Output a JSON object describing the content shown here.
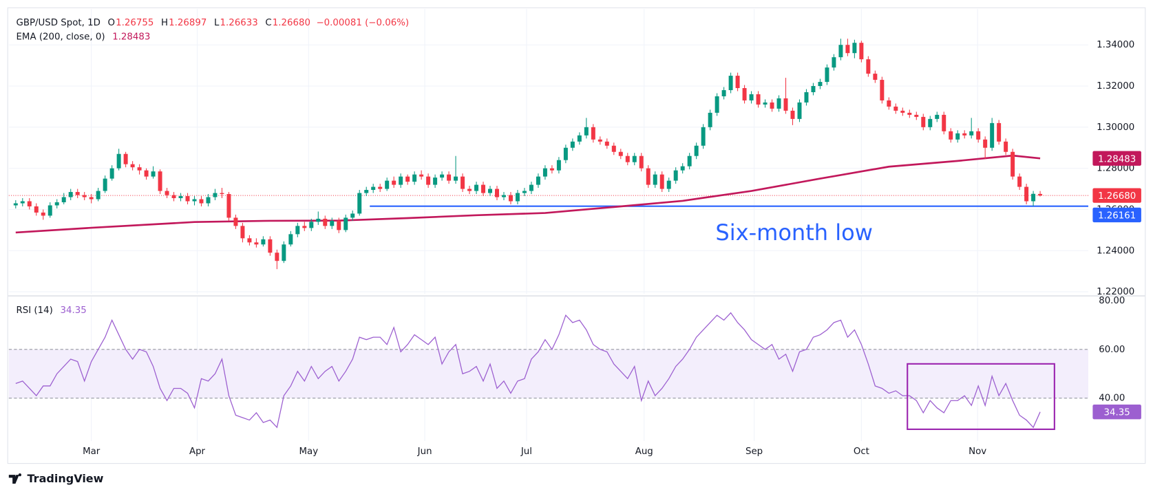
{
  "chart_data": {
    "type": "candlestick",
    "title": "GBP/USD Spot, 1D",
    "ohlc_labels": [
      {
        "key": "O",
        "label": "1.26755"
      },
      {
        "key": "H",
        "label": "1.26897"
      },
      {
        "key": "L",
        "label": "1.26633"
      },
      {
        "key": "C",
        "label": "1.26680"
      }
    ],
    "change_label": "−0.00081 (−0.06%)",
    "xlim": [
      -1,
      156
    ],
    "xticks": [
      {
        "value": 11,
        "label": "Mar"
      },
      {
        "value": 26.4,
        "label": "Apr"
      },
      {
        "value": 42.6,
        "label": "May"
      },
      {
        "value": 59.5,
        "label": "Jun"
      },
      {
        "value": 74.3,
        "label": "Jul"
      },
      {
        "value": 91.4,
        "label": "Aug"
      },
      {
        "value": 107.4,
        "label": "Sep"
      },
      {
        "value": 123,
        "label": "Oct"
      },
      {
        "value": 139.9,
        "label": "Nov"
      }
    ],
    "ylim": [
      1.2189,
      1.3575
    ],
    "yticks": [
      {
        "value": 1.34,
        "label": "1.34000"
      },
      {
        "value": 1.32,
        "label": "1.32000"
      },
      {
        "value": 1.3,
        "label": "1.30000"
      },
      {
        "value": 1.28,
        "label": "1.28000"
      },
      {
        "value": 1.26,
        "label": "1.26000"
      },
      {
        "value": 1.24,
        "label": "1.24000"
      },
      {
        "value": 1.22,
        "label": "1.22000"
      }
    ],
    "grid": true,
    "series": [
      {
        "up_color": "#089981",
        "down_color": "#f23645",
        "open": [
          1.262,
          1.263,
          1.264,
          1.2615,
          1.2585,
          1.257,
          1.262,
          1.2635,
          1.266,
          1.2685,
          1.267,
          1.266,
          1.265,
          1.269,
          1.275,
          1.28,
          1.287,
          1.282,
          1.2805,
          1.279,
          1.276,
          1.2785,
          1.269,
          1.267,
          1.2655,
          1.2665,
          1.264,
          1.265,
          1.263,
          1.266,
          1.268,
          1.2675,
          1.256,
          1.252,
          1.246,
          1.244,
          1.243,
          1.2455,
          1.239,
          1.235,
          1.243,
          1.248,
          1.252,
          1.251,
          1.254,
          1.2555,
          1.252,
          1.2545,
          1.25,
          1.256,
          1.258,
          1.268,
          1.2695,
          1.271,
          1.27,
          1.274,
          1.272,
          1.276,
          1.2735,
          1.277,
          1.276,
          1.272,
          1.2755,
          1.277,
          1.274,
          1.276,
          1.27,
          1.269,
          1.272,
          1.268,
          1.27,
          1.266,
          1.267,
          1.264,
          1.268,
          1.269,
          1.272,
          1.276,
          1.28,
          1.279,
          1.284,
          1.29,
          1.293,
          1.296,
          1.3,
          1.294,
          1.293,
          1.291,
          1.288,
          1.286,
          1.283,
          1.286,
          1.28,
          1.272,
          1.277,
          1.27,
          1.274,
          1.279,
          1.281,
          1.286,
          1.291,
          1.3,
          1.307,
          1.315,
          1.318,
          1.325,
          1.319,
          1.313,
          1.316,
          1.311,
          1.312,
          1.309,
          1.314,
          1.308,
          1.304,
          1.312,
          1.317,
          1.32,
          1.322,
          1.329,
          1.334,
          1.34,
          1.336,
          1.341,
          1.333,
          1.326,
          1.323,
          1.313,
          1.31,
          1.308,
          1.307,
          1.306,
          1.305,
          1.3,
          1.304,
          1.306,
          1.298,
          1.294,
          1.297,
          1.296,
          1.298,
          1.294,
          1.29,
          1.302,
          1.293,
          1.288,
          1.276,
          1.271,
          1.264,
          1.26755
        ],
        "high": [
          1.2645,
          1.2655,
          1.2655,
          1.263,
          1.26,
          1.2635,
          1.265,
          1.268,
          1.27,
          1.27,
          1.2685,
          1.2675,
          1.2705,
          1.2765,
          1.2815,
          1.2895,
          1.288,
          1.2835,
          1.282,
          1.28,
          1.281,
          1.2795,
          1.2705,
          1.2685,
          1.268,
          1.268,
          1.2665,
          1.2665,
          1.2675,
          1.27,
          1.2705,
          1.2685,
          1.2575,
          1.2535,
          1.2475,
          1.246,
          1.247,
          1.247,
          1.2405,
          1.2445,
          1.2495,
          1.2535,
          1.254,
          1.2555,
          1.259,
          1.257,
          1.256,
          1.256,
          1.2575,
          1.2595,
          1.2695,
          1.271,
          1.2725,
          1.2725,
          1.2755,
          1.276,
          1.2775,
          1.277,
          1.2785,
          1.279,
          1.2775,
          1.277,
          1.2785,
          1.2785,
          1.286,
          1.2775,
          1.2715,
          1.2735,
          1.2735,
          1.2715,
          1.2715,
          1.2685,
          1.2685,
          1.2695,
          1.2705,
          1.2735,
          1.2775,
          1.2815,
          1.2815,
          1.2855,
          1.2915,
          1.2945,
          1.2975,
          1.3045,
          1.3015,
          1.2955,
          1.2945,
          1.2925,
          1.2895,
          1.2875,
          1.2875,
          1.2875,
          1.2815,
          1.2785,
          1.2785,
          1.2755,
          1.2805,
          1.2825,
          1.2875,
          1.2925,
          1.3015,
          1.3085,
          1.3165,
          1.3195,
          1.3265,
          1.3265,
          1.3205,
          1.3175,
          1.3175,
          1.3135,
          1.3135,
          1.3155,
          1.324,
          1.3095,
          1.3135,
          1.3185,
          1.3215,
          1.3235,
          1.3305,
          1.3355,
          1.343,
          1.343,
          1.3425,
          1.342,
          1.3345,
          1.3275,
          1.3245,
          1.3145,
          1.3115,
          1.3095,
          1.3085,
          1.3075,
          1.3065,
          1.3055,
          1.3075,
          1.3075,
          1.2995,
          1.2985,
          1.2985,
          1.3045,
          1.2995,
          1.2955,
          1.3045,
          1.3035,
          1.2945,
          1.2895,
          1.2775,
          1.2725,
          1.269,
          1.26897
        ],
        "low": [
          1.2605,
          1.2615,
          1.26,
          1.257,
          1.255,
          1.256,
          1.2605,
          1.2625,
          1.2645,
          1.2655,
          1.2645,
          1.263,
          1.264,
          1.268,
          1.274,
          1.279,
          1.2805,
          1.279,
          1.277,
          1.2745,
          1.275,
          1.2675,
          1.2655,
          1.264,
          1.264,
          1.2625,
          1.262,
          1.2615,
          1.2615,
          1.2645,
          1.2655,
          1.2545,
          1.2505,
          1.244,
          1.2425,
          1.2415,
          1.242,
          1.2375,
          1.231,
          1.234,
          1.242,
          1.2465,
          1.2495,
          1.2495,
          1.2525,
          1.2505,
          1.2505,
          1.2485,
          1.249,
          1.2545,
          1.257,
          1.2665,
          1.268,
          1.2685,
          1.269,
          1.2705,
          1.2705,
          1.272,
          1.272,
          1.2745,
          1.2705,
          1.2705,
          1.274,
          1.2725,
          1.2725,
          1.2685,
          1.2675,
          1.2675,
          1.2665,
          1.2665,
          1.2645,
          1.2645,
          1.2625,
          1.2625,
          1.2665,
          1.2675,
          1.2705,
          1.2745,
          1.2775,
          1.2775,
          1.2825,
          1.2885,
          1.2915,
          1.2945,
          1.2925,
          1.2915,
          1.2895,
          1.2865,
          1.2845,
          1.2815,
          1.2815,
          1.2785,
          1.2705,
          1.2705,
          1.2685,
          1.2685,
          1.2725,
          1.2775,
          1.2795,
          1.2845,
          1.2895,
          1.2985,
          1.3055,
          1.3135,
          1.3165,
          1.3175,
          1.3115,
          1.3115,
          1.3095,
          1.3095,
          1.3075,
          1.3075,
          1.3065,
          1.301,
          1.3025,
          1.3105,
          1.3155,
          1.3185,
          1.3205,
          1.3275,
          1.3325,
          1.3345,
          1.3335,
          1.3315,
          1.3245,
          1.3215,
          1.3115,
          1.3085,
          1.3065,
          1.3055,
          1.3045,
          1.3035,
          1.2985,
          1.2985,
          1.3025,
          1.2965,
          1.2925,
          1.2925,
          1.2945,
          1.2945,
          1.2925,
          1.2845,
          1.2885,
          1.2915,
          1.2865,
          1.2745,
          1.2695,
          1.2625,
          1.26161,
          1.26633
        ],
        "close": [
          1.263,
          1.264,
          1.2615,
          1.2585,
          1.257,
          1.262,
          1.2635,
          1.266,
          1.2685,
          1.267,
          1.266,
          1.265,
          1.269,
          1.275,
          1.28,
          1.287,
          1.282,
          1.2805,
          1.279,
          1.276,
          1.2785,
          1.269,
          1.267,
          1.2655,
          1.2665,
          1.264,
          1.265,
          1.263,
          1.266,
          1.268,
          1.2675,
          1.256,
          1.252,
          1.246,
          1.244,
          1.243,
          1.2455,
          1.239,
          1.235,
          1.243,
          1.248,
          1.252,
          1.251,
          1.254,
          1.2555,
          1.252,
          1.2545,
          1.25,
          1.256,
          1.258,
          1.268,
          1.2695,
          1.271,
          1.27,
          1.274,
          1.272,
          1.276,
          1.2735,
          1.277,
          1.276,
          1.272,
          1.2755,
          1.277,
          1.274,
          1.276,
          1.27,
          1.269,
          1.272,
          1.268,
          1.27,
          1.266,
          1.267,
          1.264,
          1.268,
          1.269,
          1.272,
          1.276,
          1.28,
          1.279,
          1.284,
          1.29,
          1.293,
          1.296,
          1.3,
          1.294,
          1.293,
          1.291,
          1.288,
          1.286,
          1.283,
          1.286,
          1.28,
          1.272,
          1.277,
          1.27,
          1.274,
          1.279,
          1.281,
          1.286,
          1.291,
          1.3,
          1.307,
          1.315,
          1.318,
          1.325,
          1.319,
          1.313,
          1.316,
          1.311,
          1.312,
          1.309,
          1.314,
          1.308,
          1.304,
          1.312,
          1.317,
          1.32,
          1.322,
          1.329,
          1.334,
          1.34,
          1.336,
          1.341,
          1.333,
          1.326,
          1.323,
          1.313,
          1.31,
          1.308,
          1.307,
          1.306,
          1.305,
          1.3,
          1.304,
          1.306,
          1.298,
          1.294,
          1.297,
          1.296,
          1.298,
          1.294,
          1.29,
          1.302,
          1.293,
          1.288,
          1.276,
          1.271,
          1.264,
          1.2676,
          1.2668
        ]
      },
      {
        "name": "EMA (200, close, 0)",
        "color": "#c2185b",
        "last_label": "1.28483",
        "x": [
          0,
          11,
          26,
          37,
          47,
          57,
          67,
          77,
          87,
          97,
          107,
          117,
          127,
          137,
          145,
          149
        ],
        "values": [
          1.2488,
          1.2511,
          1.2539,
          1.2545,
          1.2546,
          1.2558,
          1.2572,
          1.2583,
          1.2612,
          1.2642,
          1.269,
          1.275,
          1.2808,
          1.2836,
          1.2862,
          1.28483
        ]
      }
    ],
    "price_line": {
      "value": 1.2668,
      "label": "1.26680",
      "color": "#f23645"
    },
    "hline": {
      "value": 1.26161,
      "label": "1.26161",
      "color": "#2962ff",
      "x_start": 51.5,
      "annotation": "Six-month low"
    },
    "rsi": {
      "title": "RSI (14)",
      "color": "#9c5fd0",
      "ylim": [
        22.4,
        81.5
      ],
      "yticks": [
        {
          "value": 80,
          "label": "80.00"
        },
        {
          "value": 60,
          "label": "60.00"
        },
        {
          "value": 40,
          "label": "40.00"
        }
      ],
      "band": [
        40,
        60
      ],
      "values": [
        46,
        47,
        44,
        41,
        45,
        45,
        50,
        53,
        56,
        55,
        47,
        55,
        60,
        65,
        72,
        66,
        60,
        56,
        60,
        59,
        53,
        44,
        39,
        44,
        44,
        42,
        36,
        48,
        47,
        50,
        56,
        41,
        33,
        32,
        31,
        34,
        30,
        31,
        28,
        41,
        45,
        51,
        47,
        53,
        48,
        51,
        53,
        47,
        51,
        56,
        65,
        64,
        65,
        65,
        62,
        69,
        59,
        62,
        66,
        64,
        62,
        65,
        54,
        59,
        62,
        50,
        51,
        53,
        47,
        54,
        44,
        47,
        42,
        47,
        48,
        56,
        59,
        64,
        60,
        66,
        74,
        71,
        72,
        68,
        62,
        60,
        59,
        54,
        51,
        48,
        53,
        39,
        47,
        41,
        44,
        48,
        53,
        56,
        60,
        65,
        68,
        71,
        74,
        72,
        75,
        71,
        68,
        64,
        62,
        60,
        62,
        56,
        58,
        51,
        59,
        60,
        65,
        66,
        68,
        71,
        72,
        65,
        68,
        62,
        54,
        45,
        44,
        42,
        43,
        41,
        41,
        39,
        34,
        39,
        36,
        34,
        39,
        39,
        41,
        37,
        45,
        37,
        49,
        41,
        46,
        39,
        33,
        31,
        28,
        34.35
      ]
    },
    "footer": "TradingView"
  }
}
